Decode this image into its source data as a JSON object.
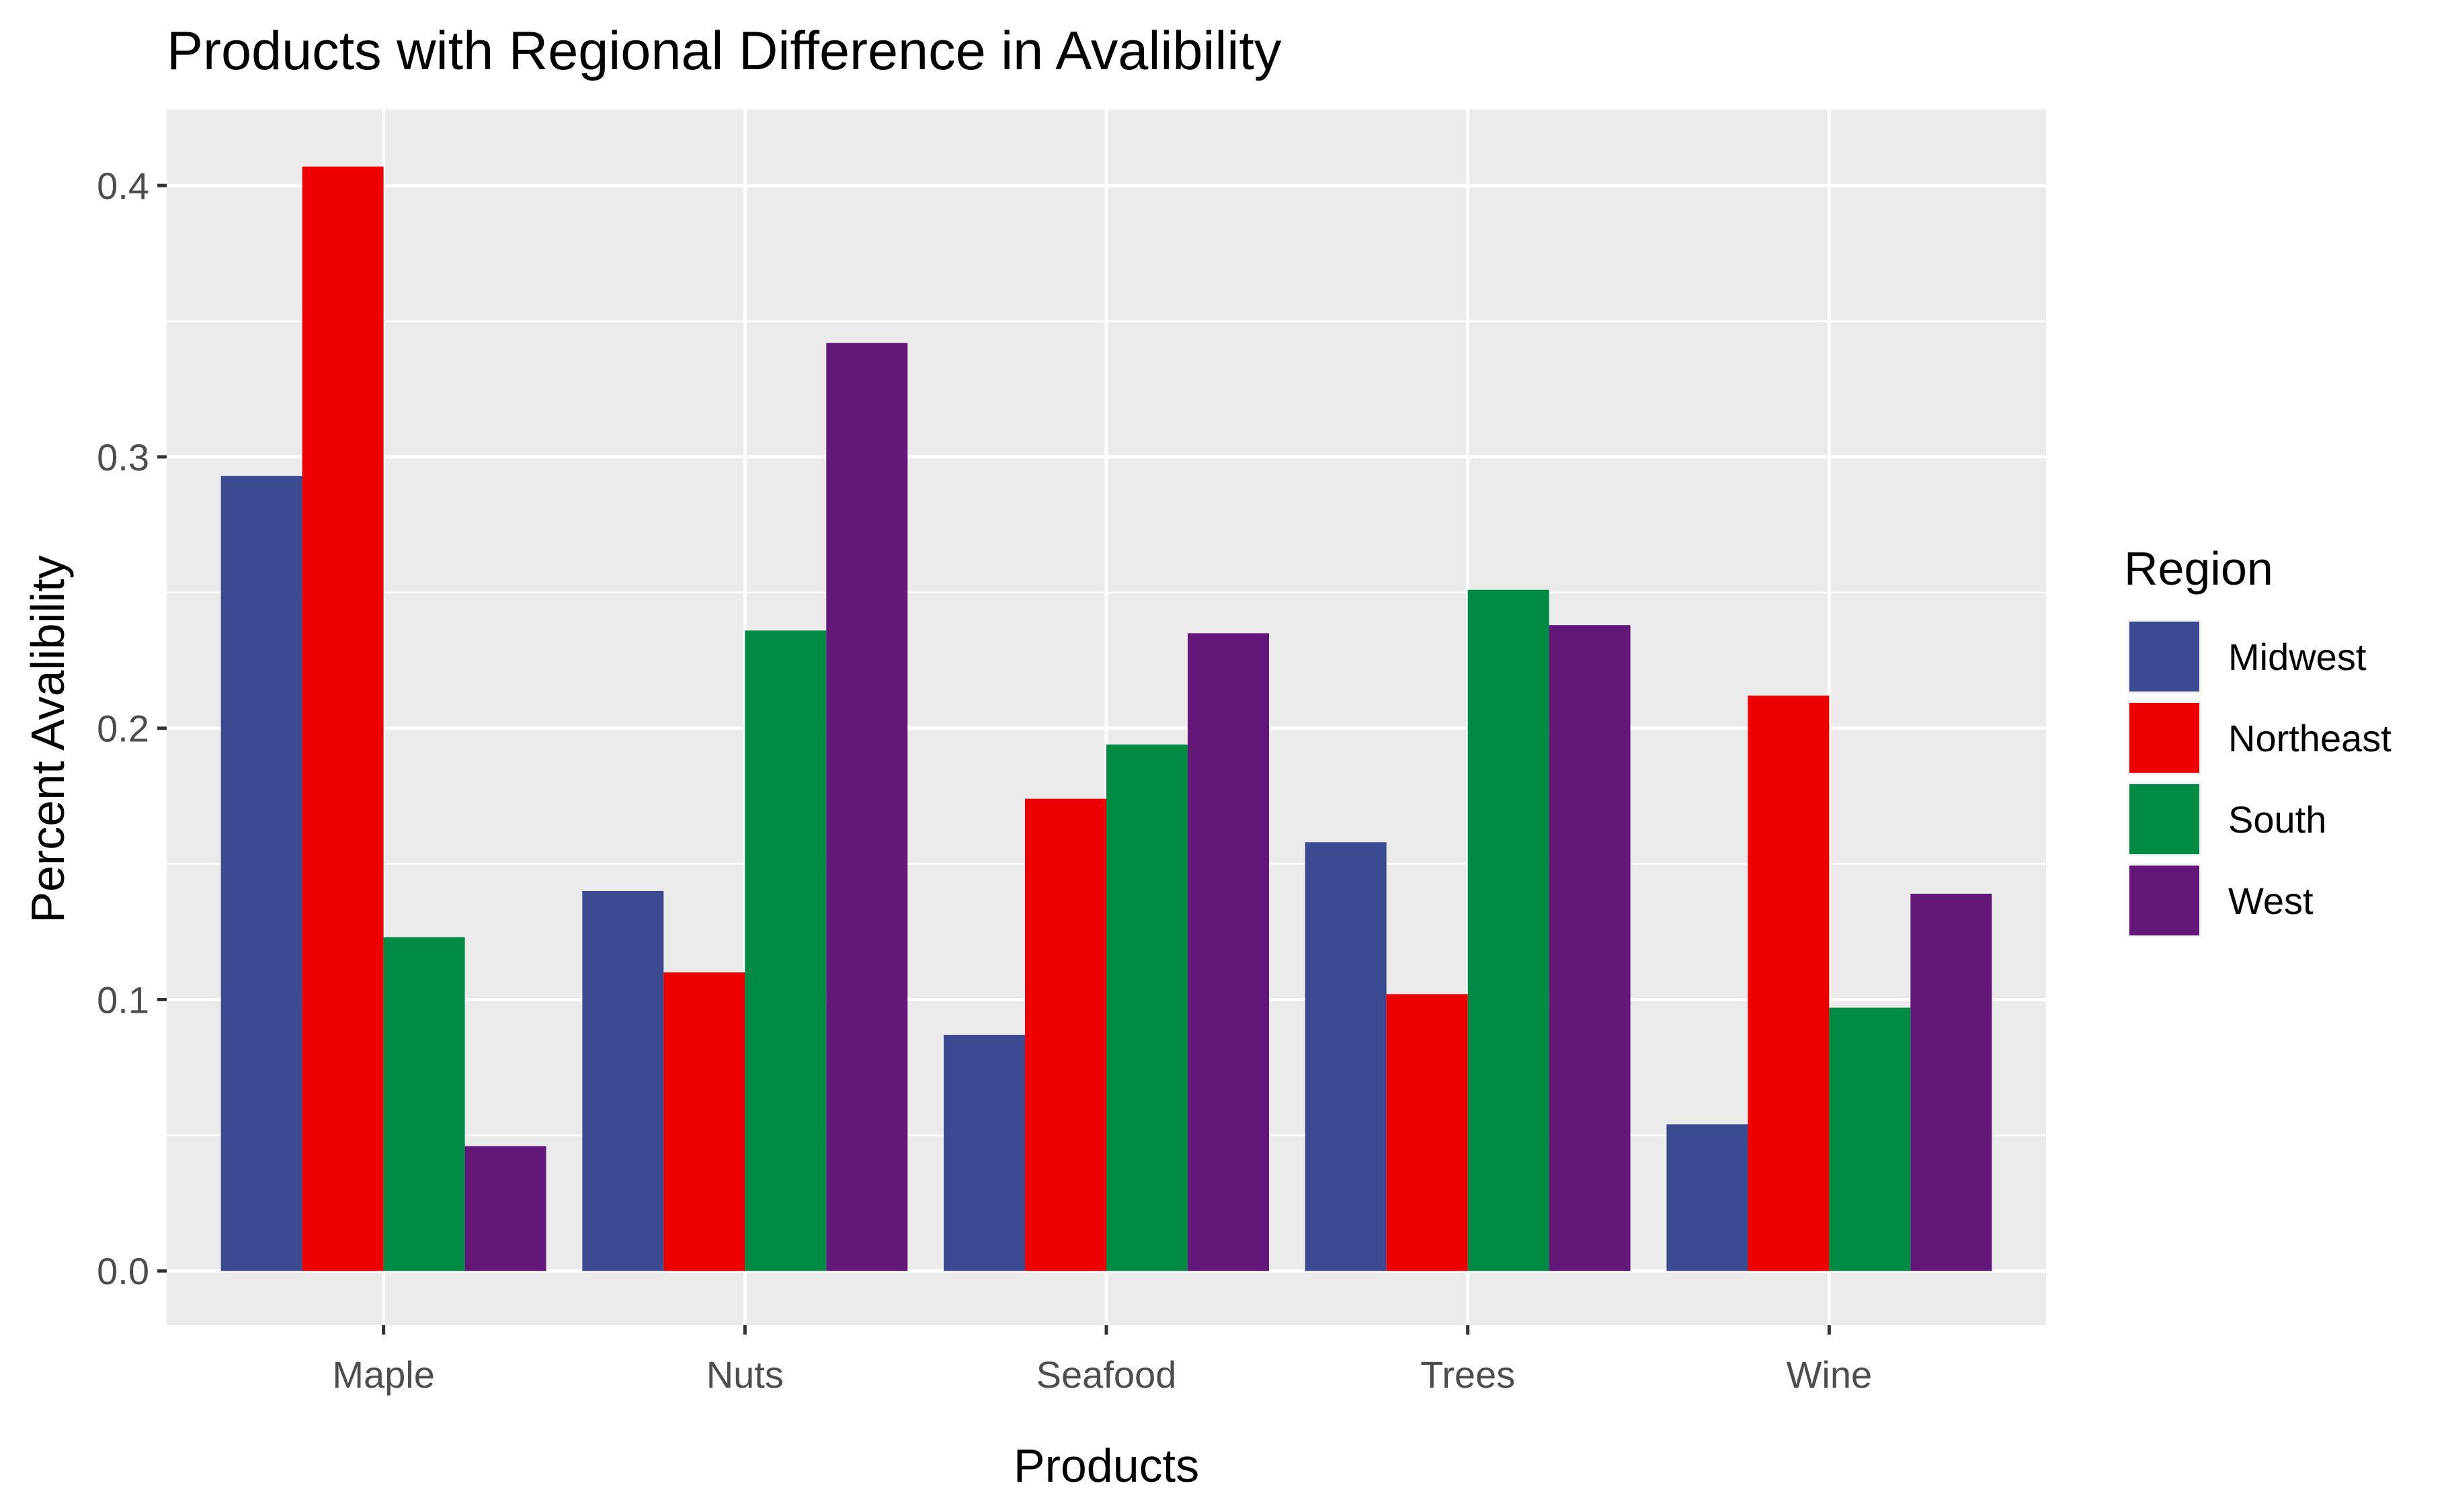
{
  "chart_data": {
    "type": "bar",
    "title": "Products with Regional Difference in Avalibility",
    "xlabel": "Products",
    "ylabel": "Percent Avalibility",
    "categories": [
      "Maple",
      "Nuts",
      "Seafood",
      "Trees",
      "Wine"
    ],
    "ylim": [
      -0.02,
      0.428
    ],
    "yticks": [
      0.0,
      0.1,
      0.2,
      0.3,
      0.4
    ],
    "ytick_labels": [
      "0.0",
      "0.1",
      "0.2",
      "0.3",
      "0.4"
    ],
    "grid": true,
    "legend": {
      "title": "Region",
      "position": "right"
    },
    "series": [
      {
        "name": "Midwest",
        "color": "#3c4a91",
        "values": [
          0.293,
          0.14,
          0.087,
          0.158,
          0.054
        ]
      },
      {
        "name": "Northeast",
        "color": "#ee0000",
        "values": [
          0.407,
          0.11,
          0.174,
          0.102,
          0.212
        ]
      },
      {
        "name": "South",
        "color": "#008b45",
        "values": [
          0.123,
          0.236,
          0.194,
          0.251,
          0.097
        ]
      },
      {
        "name": "West",
        "color": "#631879",
        "values": [
          0.046,
          0.342,
          0.235,
          0.238,
          0.139
        ]
      }
    ],
    "panel_background": "#ebebeb",
    "grid_color": "#ffffff"
  }
}
